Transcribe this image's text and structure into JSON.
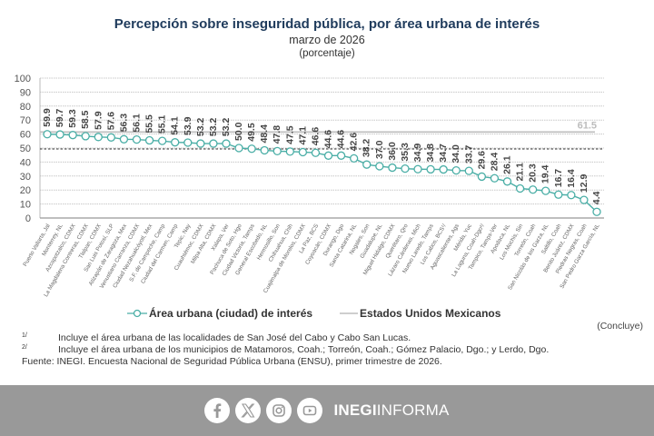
{
  "header": {
    "title": "Percepción sobre inseguridad pública, por área urbana de interés",
    "subtitle": "marzo de 2026",
    "unit": "(porcentaje)"
  },
  "chart_data": {
    "type": "line",
    "title": "Percepción sobre inseguridad pública, por área urbana de interés",
    "subtitle": "marzo de 2026 (porcentaje)",
    "xlabel": "",
    "ylabel": "",
    "ylim": [
      0,
      100
    ],
    "yticks": [
      0,
      10,
      20,
      30,
      40,
      50,
      60,
      70,
      80,
      90,
      100
    ],
    "grid": true,
    "categories": [
      "Puerto Vallarta, Jal",
      "Monterrey, NL",
      "Azcapotzalco, CDMX",
      "La Magdalena Contreras, CDMX",
      "Tlalpan, CDMX",
      "San Luis Potosí, SLP",
      "Atizapán de Zaragoza, Mex",
      "Venustiano Carranza, CDMX",
      "Ciudad Nezahualcóyotl, Mex",
      "S.F. de Campeche, Camp",
      "Ciudad del Carmen, Camp",
      "Tepic, Nay",
      "Cuauhtémoc, CDMX",
      "Milpa Alta, CDMX",
      "Xalapa, Ver",
      "Pachuca de Soto, Hgo",
      "Ciudad Victoria, Tamps",
      "General Escobedo, NL",
      "Hermosillo, Son",
      "Chihuahua, Chih",
      "Cuajimalpa de Morelos, CDMX",
      "La Paz, BCS",
      "Coyoacán, CDMX",
      "Durango, Dgo",
      "Santa Catarina, NL",
      "Nogales, Son",
      "Guadalupe, NL",
      "Miguel Hidalgo, CDMX",
      "Querétaro, Qro",
      "Lázaro Cárdenas, Mich",
      "Nuevo Laredo, Tamps",
      "Los Cabos, BCS¹/",
      "Aguascalientes, Ags",
      "Mérida, Yuc",
      "La Laguna, Coah-Dgo²/",
      "Tampico, Tamps-Ver",
      "Apodaca, NL",
      "Los Mochis, Sin",
      "Torreón, Coah",
      "San Nicolás de los Garza, NL",
      "Saltillo, Coah",
      "Benito Juárez, CDMX",
      "Piedras Negras, Coah",
      "San Pedro Garza García, NL"
    ],
    "series": [
      {
        "name": "Área urbana (ciudad) de interés",
        "color": "#4aaea6",
        "values": [
          59.9,
          59.7,
          59.3,
          58.5,
          57.9,
          57.6,
          56.3,
          56.1,
          55.5,
          55.1,
          54.1,
          53.9,
          53.2,
          53.2,
          53.2,
          50.0,
          49.5,
          48.4,
          47.8,
          47.5,
          47.1,
          46.6,
          44.6,
          44.6,
          42.6,
          38.2,
          37.0,
          36.0,
          35.3,
          34.9,
          34.8,
          34.7,
          34.0,
          33.7,
          29.6,
          28.4,
          26.1,
          21.1,
          20.3,
          19.4,
          16.7,
          16.4,
          12.9,
          4.4
        ]
      },
      {
        "name": "Estados Unidos Mexicanos",
        "color": "#bdbdbd",
        "values": [
          61.5
        ],
        "style": "reference-line"
      }
    ],
    "annotations": [
      {
        "text": "61.5",
        "target": "Estados Unidos Mexicanos"
      }
    ],
    "reference_line_dashed": 50,
    "legend_position": "bottom"
  },
  "legend": {
    "series1": "Área urbana (ciudad) de interés",
    "series2": "Estados Unidos Mexicanos"
  },
  "concluye": "(Concluye)",
  "notes": [
    {
      "sup": "1/",
      "text": "Incluye el área urbana de las localidades de San José del Cabo y Cabo San Lucas."
    },
    {
      "sup": "2/",
      "text": "Incluye el área urbana de los municipios de Matamoros, Coah.; Torreón, Coah.; Gómez Palacio, Dgo.; y Lerdo, Dgo."
    }
  ],
  "source": "Fuente: INEGI. Encuesta Nacional de Seguridad Pública Urbana (ENSU), primer trimestre de 2026.",
  "footer": {
    "icons": [
      "facebook-icon",
      "x-icon",
      "instagram-icon",
      "youtube-icon"
    ],
    "brand_bold": "INEGI",
    "brand_light": "INFORMA",
    "colors": {
      "background": "#999999",
      "text": "#ffffff"
    }
  }
}
